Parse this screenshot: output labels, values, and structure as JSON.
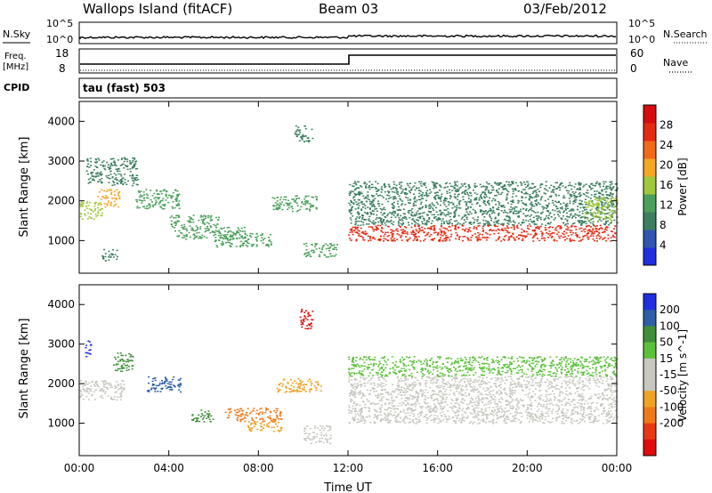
{
  "header": {
    "station": "Wallops Island (fitACF)",
    "beam": "Beam 03",
    "date": "03/Feb/2012"
  },
  "strip_labels": {
    "nsky": "N.Sky",
    "nsearch": "N.Search",
    "freq_top": "Freq.",
    "freq_unit": "[MHz]",
    "nave": "Nave",
    "cpid": "CPID",
    "cpid_value": "tau (fast) 503"
  },
  "strip_ticks": {
    "nsky_hi": "10^5",
    "nsky_lo": "10^0",
    "nsearch_hi": "10^5",
    "nsearch_lo": "10^0",
    "freq_hi": "18",
    "freq_lo": "8",
    "nave_hi": "60",
    "nave_lo": "0"
  },
  "colors": {
    "power_scale": [
      "#1f2fe0",
      "#2f55b0",
      "#3c7f60",
      "#4aa05a",
      "#9fc83c",
      "#f5a623",
      "#f06a1a",
      "#e52a12",
      "#d80c0c"
    ],
    "velocity_scale": [
      "#1f2fe0",
      "#2f5fa8",
      "#3f8f3a",
      "#5cc13a",
      "#c8c8c0",
      "#c8c8c0",
      "#f0a224",
      "#f07a1a",
      "#e83a12",
      "#e00c0c"
    ]
  },
  "chart_data": [
    {
      "type": "heatmap",
      "name": "Power",
      "ylabel": "Slant Range [km]",
      "x_range_hours": [
        0,
        24
      ],
      "ylim_km": [
        180,
        4500
      ],
      "yticks": [
        1000,
        2000,
        3000,
        4000
      ],
      "colorbar_label": "Power [dB]",
      "colorbar_ticks": [
        4,
        8,
        12,
        16,
        20,
        24,
        28
      ],
      "colorbar_range": [
        0,
        32
      ],
      "bands": [
        {
          "t0": 0.0,
          "t1": 1.0,
          "r0": 1550,
          "r1": 2000,
          "level": 16
        },
        {
          "t0": 0.8,
          "t1": 1.8,
          "r0": 1850,
          "r1": 2300,
          "level": 20
        },
        {
          "t0": 0.3,
          "t1": 2.6,
          "r0": 2400,
          "r1": 3100,
          "level": 8
        },
        {
          "t0": 1.0,
          "t1": 1.7,
          "r0": 500,
          "r1": 800,
          "level": 8
        },
        {
          "t0": 2.5,
          "t1": 4.5,
          "r0": 1800,
          "r1": 2300,
          "level": 12
        },
        {
          "t0": 4.0,
          "t1": 6.2,
          "r0": 1350,
          "r1": 1650,
          "level": 12
        },
        {
          "t0": 4.2,
          "t1": 7.4,
          "r0": 1050,
          "r1": 1350,
          "level": 14
        },
        {
          "t0": 6.0,
          "t1": 8.6,
          "r0": 850,
          "r1": 1200,
          "level": 14
        },
        {
          "t0": 8.6,
          "t1": 10.6,
          "r0": 1750,
          "r1": 2150,
          "level": 12
        },
        {
          "t0": 9.6,
          "t1": 10.4,
          "r0": 3500,
          "r1": 3900,
          "level": 8
        },
        {
          "t0": 10.0,
          "t1": 11.5,
          "r0": 600,
          "r1": 950,
          "level": 12
        },
        {
          "t0": 12.0,
          "t1": 24.0,
          "r0": 1400,
          "r1": 2500,
          "level": 8
        },
        {
          "t0": 12.0,
          "t1": 24.0,
          "r0": 1000,
          "r1": 1400,
          "level": 26
        },
        {
          "t0": 22.5,
          "t1": 24.0,
          "r0": 1500,
          "r1": 2100,
          "level": 16
        }
      ]
    },
    {
      "type": "heatmap",
      "name": "Velocity",
      "ylabel": "Slant Range [km]",
      "xlabel": "Time UT",
      "x_range_hours": [
        0,
        24
      ],
      "xticks": [
        "00:00",
        "04:00",
        "08:00",
        "12:00",
        "16:00",
        "20:00",
        "00:00"
      ],
      "ylim_km": [
        180,
        4500
      ],
      "yticks": [
        1000,
        2000,
        3000,
        4000
      ],
      "colorbar_label": "Velocity [m s^-1]",
      "colorbar_ticks": [
        "200",
        "100",
        "50",
        "15",
        "-15",
        "-50",
        "-100",
        "-200"
      ],
      "bands": [
        {
          "t0": 0.0,
          "t1": 2.0,
          "r0": 1600,
          "r1": 2100,
          "velocity": 0
        },
        {
          "t0": 0.2,
          "t1": 0.5,
          "r0": 2700,
          "r1": 3100,
          "velocity": 220
        },
        {
          "t0": 1.5,
          "t1": 2.4,
          "r0": 2300,
          "r1": 2800,
          "velocity": 60
        },
        {
          "t0": 3.0,
          "t1": 4.5,
          "r0": 1800,
          "r1": 2200,
          "velocity": 80
        },
        {
          "t0": 5.0,
          "t1": 6.0,
          "r0": 1050,
          "r1": 1350,
          "velocity": 50
        },
        {
          "t0": 6.5,
          "t1": 9.0,
          "r0": 1050,
          "r1": 1400,
          "velocity": -80
        },
        {
          "t0": 7.5,
          "t1": 9.0,
          "r0": 800,
          "r1": 1050,
          "velocity": -60
        },
        {
          "t0": 8.8,
          "t1": 10.8,
          "r0": 1800,
          "r1": 2150,
          "velocity": -70
        },
        {
          "t0": 9.8,
          "t1": 10.4,
          "r0": 3400,
          "r1": 3900,
          "velocity": -220
        },
        {
          "t0": 10.0,
          "t1": 11.2,
          "r0": 500,
          "r1": 950,
          "velocity": 0
        },
        {
          "t0": 12.0,
          "t1": 24.0,
          "r0": 1000,
          "r1": 2200,
          "velocity": 0
        },
        {
          "t0": 12.0,
          "t1": 24.0,
          "r0": 2200,
          "r1": 2700,
          "velocity": 30
        }
      ]
    }
  ]
}
